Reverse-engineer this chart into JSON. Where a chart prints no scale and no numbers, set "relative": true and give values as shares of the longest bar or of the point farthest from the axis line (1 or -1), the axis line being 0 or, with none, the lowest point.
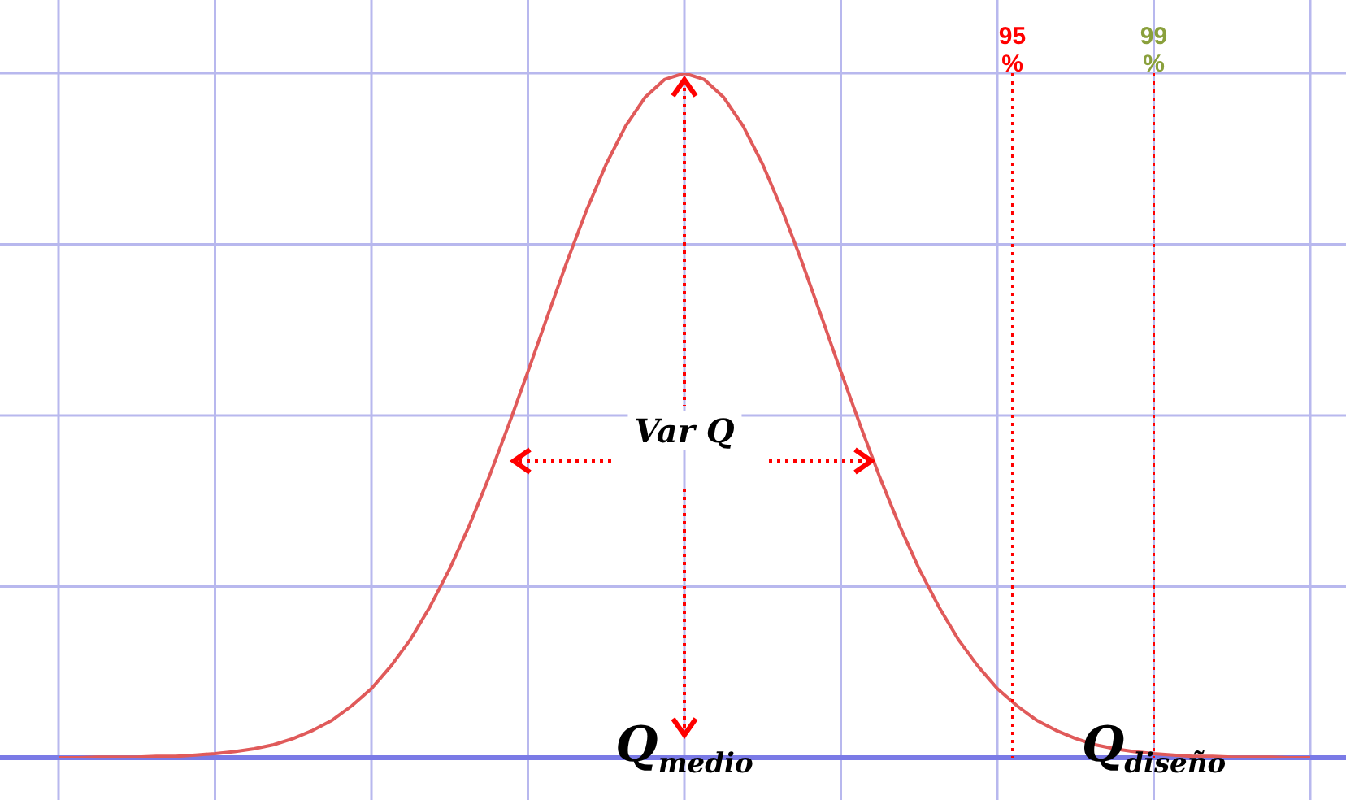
{
  "chart_data": {
    "type": "line",
    "relative": true,
    "grid": true,
    "legend": false,
    "marker": "none",
    "line_style": "solid",
    "categories": [
      null,
      null,
      null,
      null,
      null,
      null,
      null,
      null,
      null,
      null,
      null,
      null,
      null,
      null,
      null,
      null,
      null,
      null,
      null,
      null,
      null,
      null,
      null,
      null,
      null,
      null,
      null,
      null,
      null,
      null,
      null,
      null,
      "Q$_{medio}$",
      null,
      null,
      null,
      null,
      null,
      null,
      null,
      null,
      null,
      null,
      null,
      null,
      null,
      null,
      null,
      null,
      null,
      null,
      null,
      null,
      null,
      null,
      null,
      "Q$_{diseño}$",
      null,
      null,
      null,
      null,
      null,
      null,
      null,
      null
    ],
    "series": [
      {
        "color": "#e05a5a",
        "values": [
          0,
          0,
          0.001,
          0.001,
          0.001,
          0.002,
          0.002,
          0.004,
          0.006,
          0.009,
          0.013,
          0.019,
          0.028,
          0.04,
          0.055,
          0.076,
          0.101,
          0.134,
          0.173,
          0.221,
          0.276,
          0.339,
          0.409,
          0.485,
          0.564,
          0.645,
          0.725,
          0.8,
          0.867,
          0.923,
          0.965,
          0.991,
          1,
          0.991,
          0.965,
          0.923,
          0.867,
          0.8,
          0.725,
          0.645,
          0.564,
          0.485,
          0.409,
          0.339,
          0.276,
          0.221,
          0.173,
          0.134,
          0.101,
          0.076,
          0.055,
          0.04,
          0.028,
          0.019,
          0.013,
          0.009,
          0.006,
          0.004,
          0.002,
          0.002,
          0.001,
          0.001,
          0.001,
          0,
          0
        ]
      }
    ],
    "annotations": [
      "Var Q",
      "95 %",
      "99 %"
    ]
  }
}
